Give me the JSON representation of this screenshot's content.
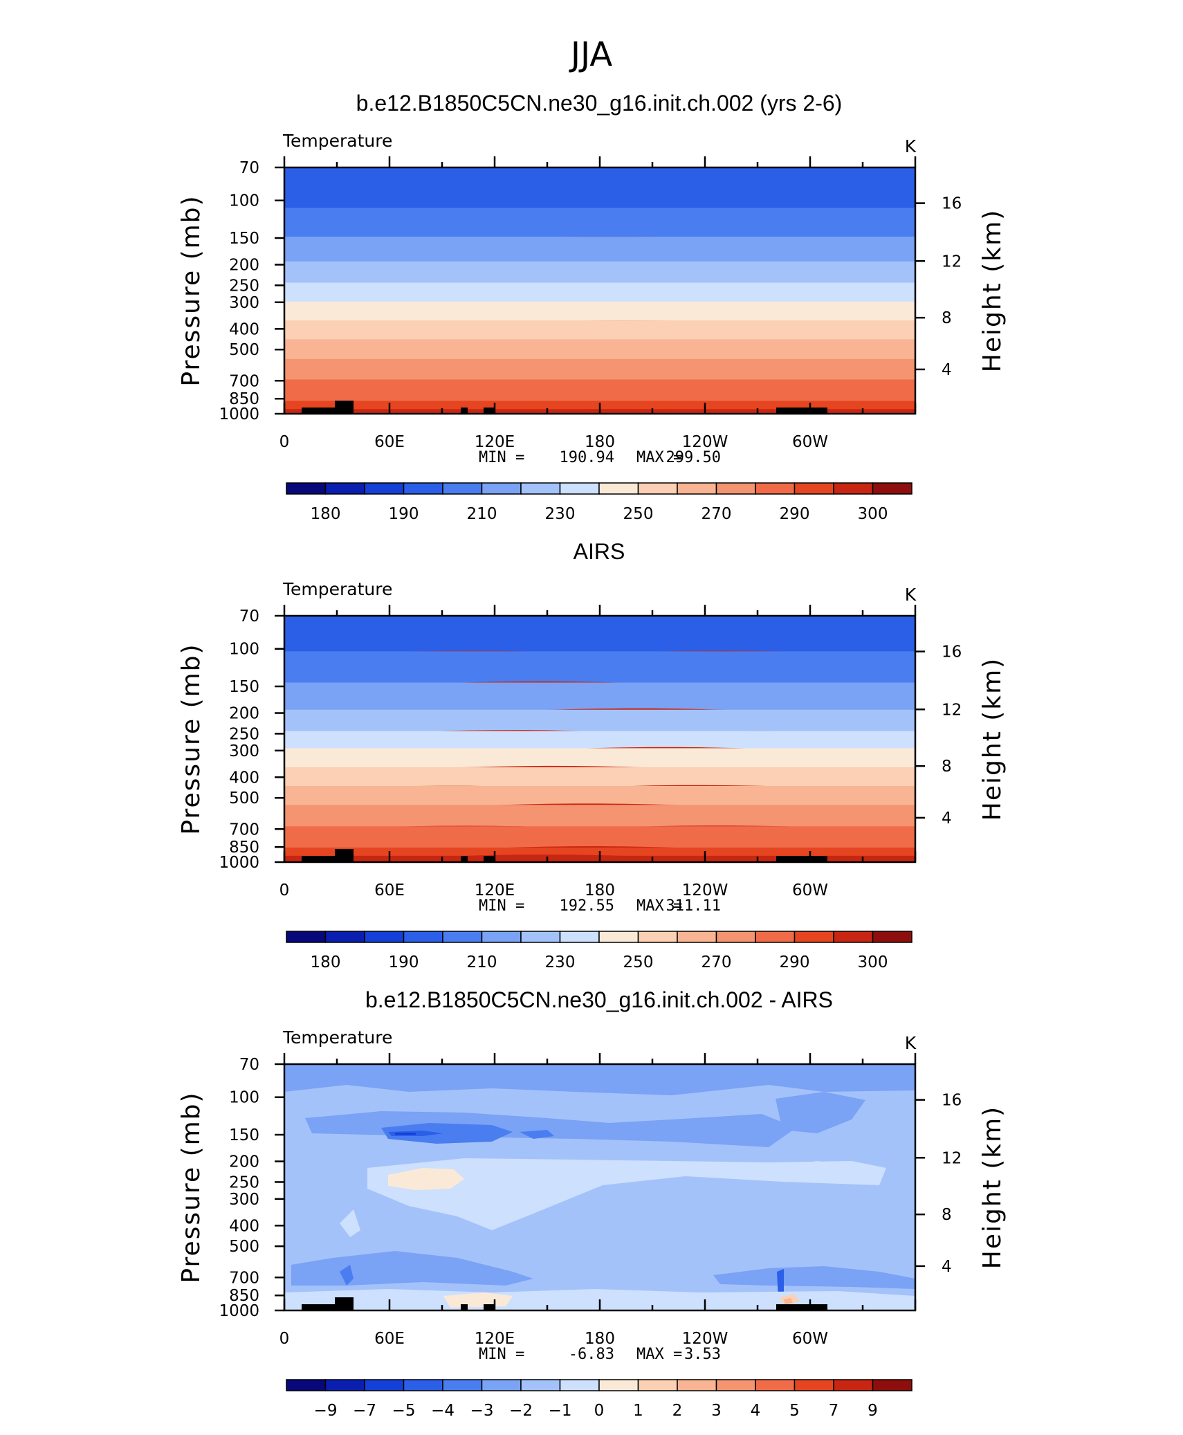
{
  "figure": {
    "title": "JJA"
  },
  "colors": {
    "palette": [
      "#08087a",
      "#0a1fb0",
      "#1440d8",
      "#2b5fe8",
      "#4a7ef0",
      "#7aa2f5",
      "#a4c2fa",
      "#cde0fd",
      "#fbe9d8",
      "#fbd0b4",
      "#f8b493",
      "#f59470",
      "#f06c48",
      "#e54521",
      "#c72612",
      "#8e0e0e"
    ]
  },
  "chart_data": [
    {
      "type": "contour",
      "title": "b.e12.B1850C5CN.ne30_g16.init.ch.002 (yrs 2-6)",
      "variable": "Temperature",
      "units": "K",
      "ylabel": "Pressure (mb)",
      "ylabel_right": "Height (km)",
      "x_ticks": [
        "0",
        "60E",
        "120E",
        "180",
        "120W",
        "60W"
      ],
      "y_ticks": [
        "70",
        "100",
        "150",
        "200",
        "250",
        "300",
        "400",
        "500",
        "700",
        "850",
        "1000"
      ],
      "y_ticks_right": [
        "16",
        "12",
        "8",
        "4"
      ],
      "min_label": "MIN =",
      "min": "190.94",
      "max_label": "MAX =",
      "max": "299.50",
      "colorbar_labels": [
        "180",
        "190",
        "210",
        "230",
        "250",
        "270",
        "290",
        "300"
      ],
      "contour_levels": [
        175,
        180,
        185,
        190,
        200,
        210,
        220,
        230,
        240,
        250,
        260,
        270,
        280,
        290,
        295,
        300
      ],
      "profile": [
        [
          70,
          195
        ],
        [
          100,
          197
        ],
        [
          150,
          210
        ],
        [
          200,
          221
        ],
        [
          250,
          231
        ],
        [
          300,
          240
        ],
        [
          400,
          254
        ],
        [
          500,
          265
        ],
        [
          700,
          280
        ],
        [
          850,
          288
        ],
        [
          1000,
          297
        ]
      ]
    },
    {
      "type": "contour",
      "title": "AIRS",
      "variable": "Temperature",
      "units": "K",
      "ylabel": "Pressure (mb)",
      "ylabel_right": "Height (km)",
      "x_ticks": [
        "0",
        "60E",
        "120E",
        "180",
        "120W",
        "60W"
      ],
      "y_ticks": [
        "70",
        "100",
        "150",
        "200",
        "250",
        "300",
        "400",
        "500",
        "700",
        "850",
        "1000"
      ],
      "y_ticks_right": [
        "16",
        "12",
        "8",
        "4"
      ],
      "min_label": "MIN =",
      "min": "192.55",
      "max_label": "MAX =",
      "max": "311.11",
      "colorbar_labels": [
        "180",
        "190",
        "210",
        "230",
        "250",
        "270",
        "290",
        "300"
      ],
      "contour_levels": [
        175,
        180,
        185,
        190,
        200,
        210,
        220,
        230,
        240,
        250,
        260,
        270,
        280,
        290,
        295,
        300
      ],
      "profile": [
        [
          70,
          198
        ],
        [
          100,
          199
        ],
        [
          150,
          211
        ],
        [
          200,
          221
        ],
        [
          250,
          231
        ],
        [
          300,
          241
        ],
        [
          400,
          255
        ],
        [
          500,
          266
        ],
        [
          700,
          281
        ],
        [
          850,
          289
        ],
        [
          1000,
          298
        ]
      ]
    },
    {
      "type": "contour",
      "title": "b.e12.B1850C5CN.ne30_g16.init.ch.002 - AIRS",
      "variable": "Temperature",
      "units": "K",
      "ylabel": "Pressure (mb)",
      "ylabel_right": "Height (km)",
      "x_ticks": [
        "0",
        "60E",
        "120E",
        "180",
        "120W",
        "60W"
      ],
      "y_ticks": [
        "70",
        "100",
        "150",
        "200",
        "250",
        "300",
        "400",
        "500",
        "700",
        "850",
        "1000"
      ],
      "y_ticks_right": [
        "16",
        "12",
        "8",
        "4"
      ],
      "min_label": "MIN =",
      "min": "-6.83",
      "max_label": "MAX =",
      "max": "3.53",
      "colorbar_labels": [
        "−9",
        "−7",
        "−5",
        "−4",
        "−3",
        "−2",
        "−1",
        "0",
        "1",
        "2",
        "3",
        "4",
        "5",
        "7",
        "9"
      ],
      "contour_levels": [
        -9,
        -7,
        -5,
        -4,
        -3,
        -2,
        -1,
        0,
        1,
        2,
        3,
        4,
        5,
        7,
        9
      ]
    }
  ]
}
